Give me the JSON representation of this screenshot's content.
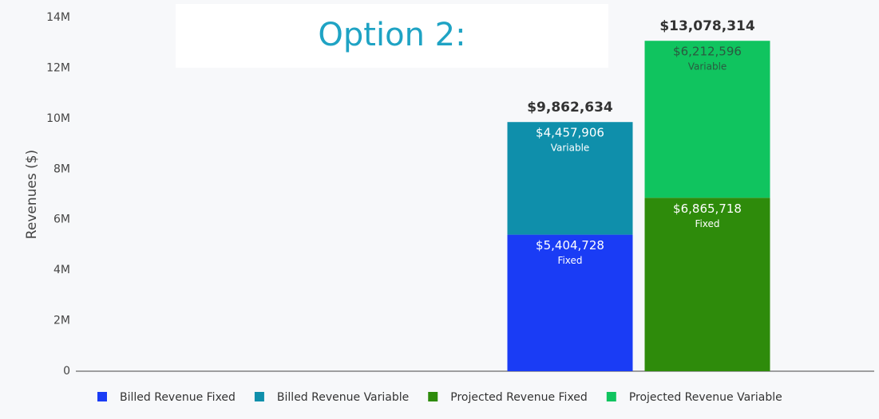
{
  "chart_data": {
    "type": "stacked_bar",
    "title": "Option 2:",
    "y_label": "Revenues ($)",
    "categories": [
      null,
      null
    ],
    "series": [
      {
        "name": "Billed Revenue Fixed",
        "label": "Fixed",
        "color": "#1a3cf5",
        "text_color": "#ffffff",
        "values": [
          5404728,
          null
        ],
        "value_labels": [
          "$5,404,728",
          null
        ]
      },
      {
        "name": "Billed Revenue Variable",
        "label": "Variable",
        "color": "#0f8fab",
        "text_color": "#ffffff",
        "values": [
          4457906,
          null
        ],
        "value_labels": [
          "$4,457,906",
          null
        ]
      },
      {
        "name": "Projected Revenue Fixed",
        "label": "Fixed",
        "color": "#2e8b0b",
        "text_color": "#ffffff",
        "values": [
          null,
          6865718
        ],
        "value_labels": [
          null,
          "$6,865,718"
        ]
      },
      {
        "name": "Projected Revenue Variable",
        "label": "Variable",
        "color": "#10c45f",
        "text_color": "#2a5a40",
        "values": [
          null,
          6212596
        ],
        "value_labels": [
          null,
          "$6,212,596"
        ]
      }
    ],
    "totals": [
      9862634,
      13078314
    ],
    "total_labels": [
      "$9,862,634",
      "$13,078,314"
    ],
    "ylim": [
      0,
      14000000
    ],
    "yticks": [
      0,
      {
        "value": 2000000,
        "label": "2M"
      },
      {
        "value": 4000000,
        "label": "4M"
      },
      {
        "value": 6000000,
        "label": "6M"
      },
      {
        "value": 8000000,
        "label": "8M"
      },
      {
        "value": 10000000,
        "label": "10M"
      },
      {
        "value": 12000000,
        "label": "12M"
      },
      {
        "value": 14000000,
        "label": "14M"
      }
    ],
    "grid": false,
    "legend": "bottom"
  }
}
